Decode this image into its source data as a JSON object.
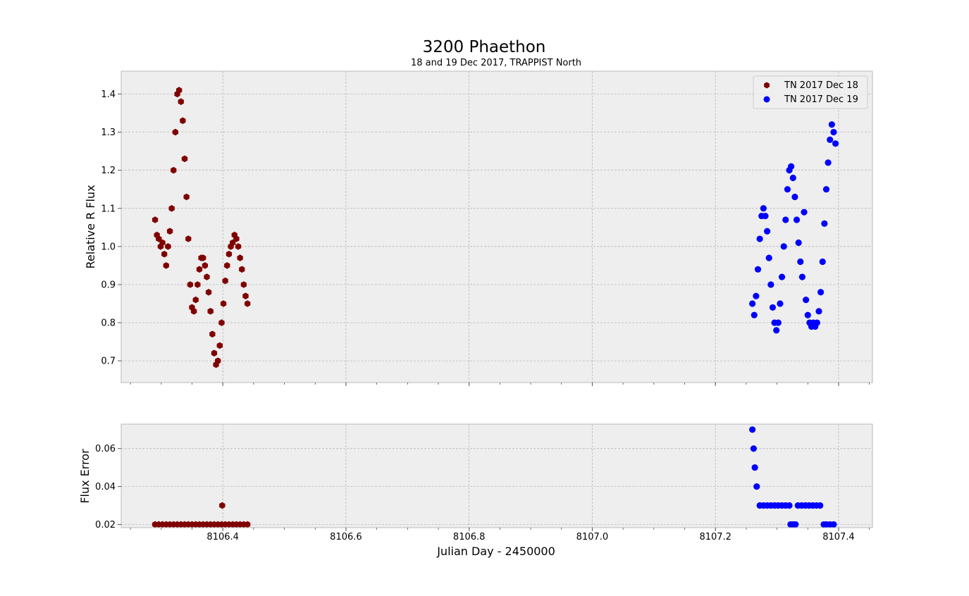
{
  "figure": {
    "title": "3200 Phaethon",
    "subtitle": "18 and 19 Dec 2017, TRAPPIST North",
    "xlabel": "Julian Day - 2450000",
    "background": "#EEEEEE",
    "grid_color": "#B0B0B0"
  },
  "chart_data": [
    {
      "type": "scatter",
      "panel": "top",
      "title": "3200 Phaethon",
      "subtitle": "18 and 19 Dec 2017, TRAPPIST North",
      "xlabel": "",
      "ylabel": "Relative  R  Flux",
      "xlim": [
        8106.235,
        8107.455
      ],
      "ylim": [
        0.643,
        1.46
      ],
      "xticks": [
        8106.4,
        8106.6,
        8106.8,
        8107.0,
        8107.2,
        8107.4
      ],
      "yticks": [
        0.7,
        0.8,
        0.9,
        1.0,
        1.1,
        1.2,
        1.3,
        1.4
      ],
      "ytick_labels": [
        "0.7",
        "0.8",
        "0.9",
        "1.0",
        "1.1",
        "1.2",
        "1.3",
        "1.4"
      ],
      "grid": true,
      "legend": "top-right",
      "series": [
        {
          "name": "TN 2017 Dec 18",
          "color": "#800000",
          "marker": "hexagon",
          "x": [
            8106.29,
            8106.293,
            8106.296,
            8106.299,
            8106.302,
            8106.305,
            8106.308,
            8106.311,
            8106.314,
            8106.317,
            8106.32,
            8106.323,
            8106.326,
            8106.329,
            8106.332,
            8106.335,
            8106.338,
            8106.341,
            8106.344,
            8106.347,
            8106.35,
            8106.353,
            8106.356,
            8106.359,
            8106.362,
            8106.365,
            8106.368,
            8106.371,
            8106.374,
            8106.377,
            8106.38,
            8106.383,
            8106.386,
            8106.389,
            8106.392,
            8106.395,
            8106.398,
            8106.401,
            8106.404,
            8106.407,
            8106.41,
            8106.413,
            8106.416,
            8106.419,
            8106.422,
            8106.425,
            8106.428,
            8106.431,
            8106.434,
            8106.437,
            8106.44
          ],
          "y": [
            1.07,
            1.03,
            1.02,
            1.0,
            1.01,
            0.98,
            0.95,
            1.0,
            1.04,
            1.1,
            1.2,
            1.3,
            1.4,
            1.41,
            1.38,
            1.33,
            1.23,
            1.13,
            1.02,
            0.9,
            0.84,
            0.83,
            0.86,
            0.9,
            0.94,
            0.97,
            0.97,
            0.95,
            0.92,
            0.88,
            0.83,
            0.77,
            0.72,
            0.69,
            0.7,
            0.74,
            0.8,
            0.85,
            0.91,
            0.95,
            0.98,
            1.0,
            1.01,
            1.03,
            1.02,
            1.0,
            0.97,
            0.94,
            0.9,
            0.87,
            0.85
          ]
        },
        {
          "name": "TN 2017 Dec 19",
          "color": "#0000FF",
          "marker": "circle",
          "x": [
            8107.26,
            8107.263,
            8107.266,
            8107.269,
            8107.272,
            8107.275,
            8107.278,
            8107.281,
            8107.284,
            8107.287,
            8107.29,
            8107.293,
            8107.296,
            8107.299,
            8107.302,
            8107.305,
            8107.308,
            8107.311,
            8107.314,
            8107.317,
            8107.32,
            8107.323,
            8107.326,
            8107.329,
            8107.332,
            8107.335,
            8107.338,
            8107.341,
            8107.344,
            8107.347,
            8107.35,
            8107.353,
            8107.356,
            8107.359,
            8107.362,
            8107.365,
            8107.368,
            8107.371,
            8107.374,
            8107.377,
            8107.38,
            8107.383,
            8107.386,
            8107.389,
            8107.392,
            8107.395
          ],
          "y": [
            0.85,
            0.82,
            0.87,
            0.94,
            1.02,
            1.08,
            1.1,
            1.08,
            1.04,
            0.97,
            0.9,
            0.84,
            0.8,
            0.78,
            0.8,
            0.85,
            0.92,
            1.0,
            1.07,
            1.15,
            1.2,
            1.21,
            1.18,
            1.13,
            1.07,
            1.01,
            0.96,
            0.92,
            1.09,
            0.86,
            0.82,
            0.8,
            0.79,
            0.8,
            0.79,
            0.8,
            0.83,
            0.88,
            0.96,
            1.06,
            1.15,
            1.22,
            1.28,
            1.32,
            1.3,
            1.27
          ]
        }
      ]
    },
    {
      "type": "scatter",
      "panel": "bottom",
      "title": "",
      "xlabel": "Julian Day - 2450000",
      "ylabel": "Flux Error",
      "xlim": [
        8106.235,
        8107.455
      ],
      "ylim": [
        0.0183,
        0.0729
      ],
      "xticks": [
        8106.4,
        8106.6,
        8106.8,
        8107.0,
        8107.2,
        8107.4
      ],
      "xtick_labels": [
        "8106.4",
        "8106.6",
        "8106.8",
        "8107.0",
        "8107.2",
        "8107.4"
      ],
      "yticks": [
        0.02,
        0.04,
        0.06
      ],
      "ytick_labels": [
        "0.02",
        "0.04",
        "0.06"
      ],
      "grid": true,
      "series": [
        {
          "color": "#800000",
          "marker": "hexagon",
          "x": [
            8106.29,
            8106.296,
            8106.302,
            8106.308,
            8106.314,
            8106.32,
            8106.326,
            8106.332,
            8106.338,
            8106.344,
            8106.35,
            8106.356,
            8106.362,
            8106.368,
            8106.374,
            8106.38,
            8106.386,
            8106.392,
            8106.398,
            8106.399,
            8106.404,
            8106.41,
            8106.416,
            8106.422,
            8106.428,
            8106.434,
            8106.44
          ],
          "y": [
            0.02,
            0.02,
            0.02,
            0.02,
            0.02,
            0.02,
            0.02,
            0.02,
            0.02,
            0.02,
            0.02,
            0.02,
            0.02,
            0.02,
            0.02,
            0.02,
            0.02,
            0.02,
            0.02,
            0.03,
            0.02,
            0.02,
            0.02,
            0.02,
            0.02,
            0.02,
            0.02
          ]
        },
        {
          "color": "#0000FF",
          "marker": "circle",
          "x": [
            8107.26,
            8107.262,
            8107.264,
            8107.267,
            8107.272,
            8107.278,
            8107.284,
            8107.29,
            8107.296,
            8107.302,
            8107.308,
            8107.314,
            8107.32,
            8107.322,
            8107.326,
            8107.33,
            8107.334,
            8107.34,
            8107.346,
            8107.352,
            8107.358,
            8107.364,
            8107.37,
            8107.376,
            8107.38,
            8107.386,
            8107.392
          ],
          "y": [
            0.07,
            0.06,
            0.05,
            0.04,
            0.03,
            0.03,
            0.03,
            0.03,
            0.03,
            0.03,
            0.03,
            0.03,
            0.03,
            0.02,
            0.02,
            0.02,
            0.03,
            0.03,
            0.03,
            0.03,
            0.03,
            0.03,
            0.03,
            0.02,
            0.02,
            0.02,
            0.02
          ]
        }
      ]
    }
  ]
}
